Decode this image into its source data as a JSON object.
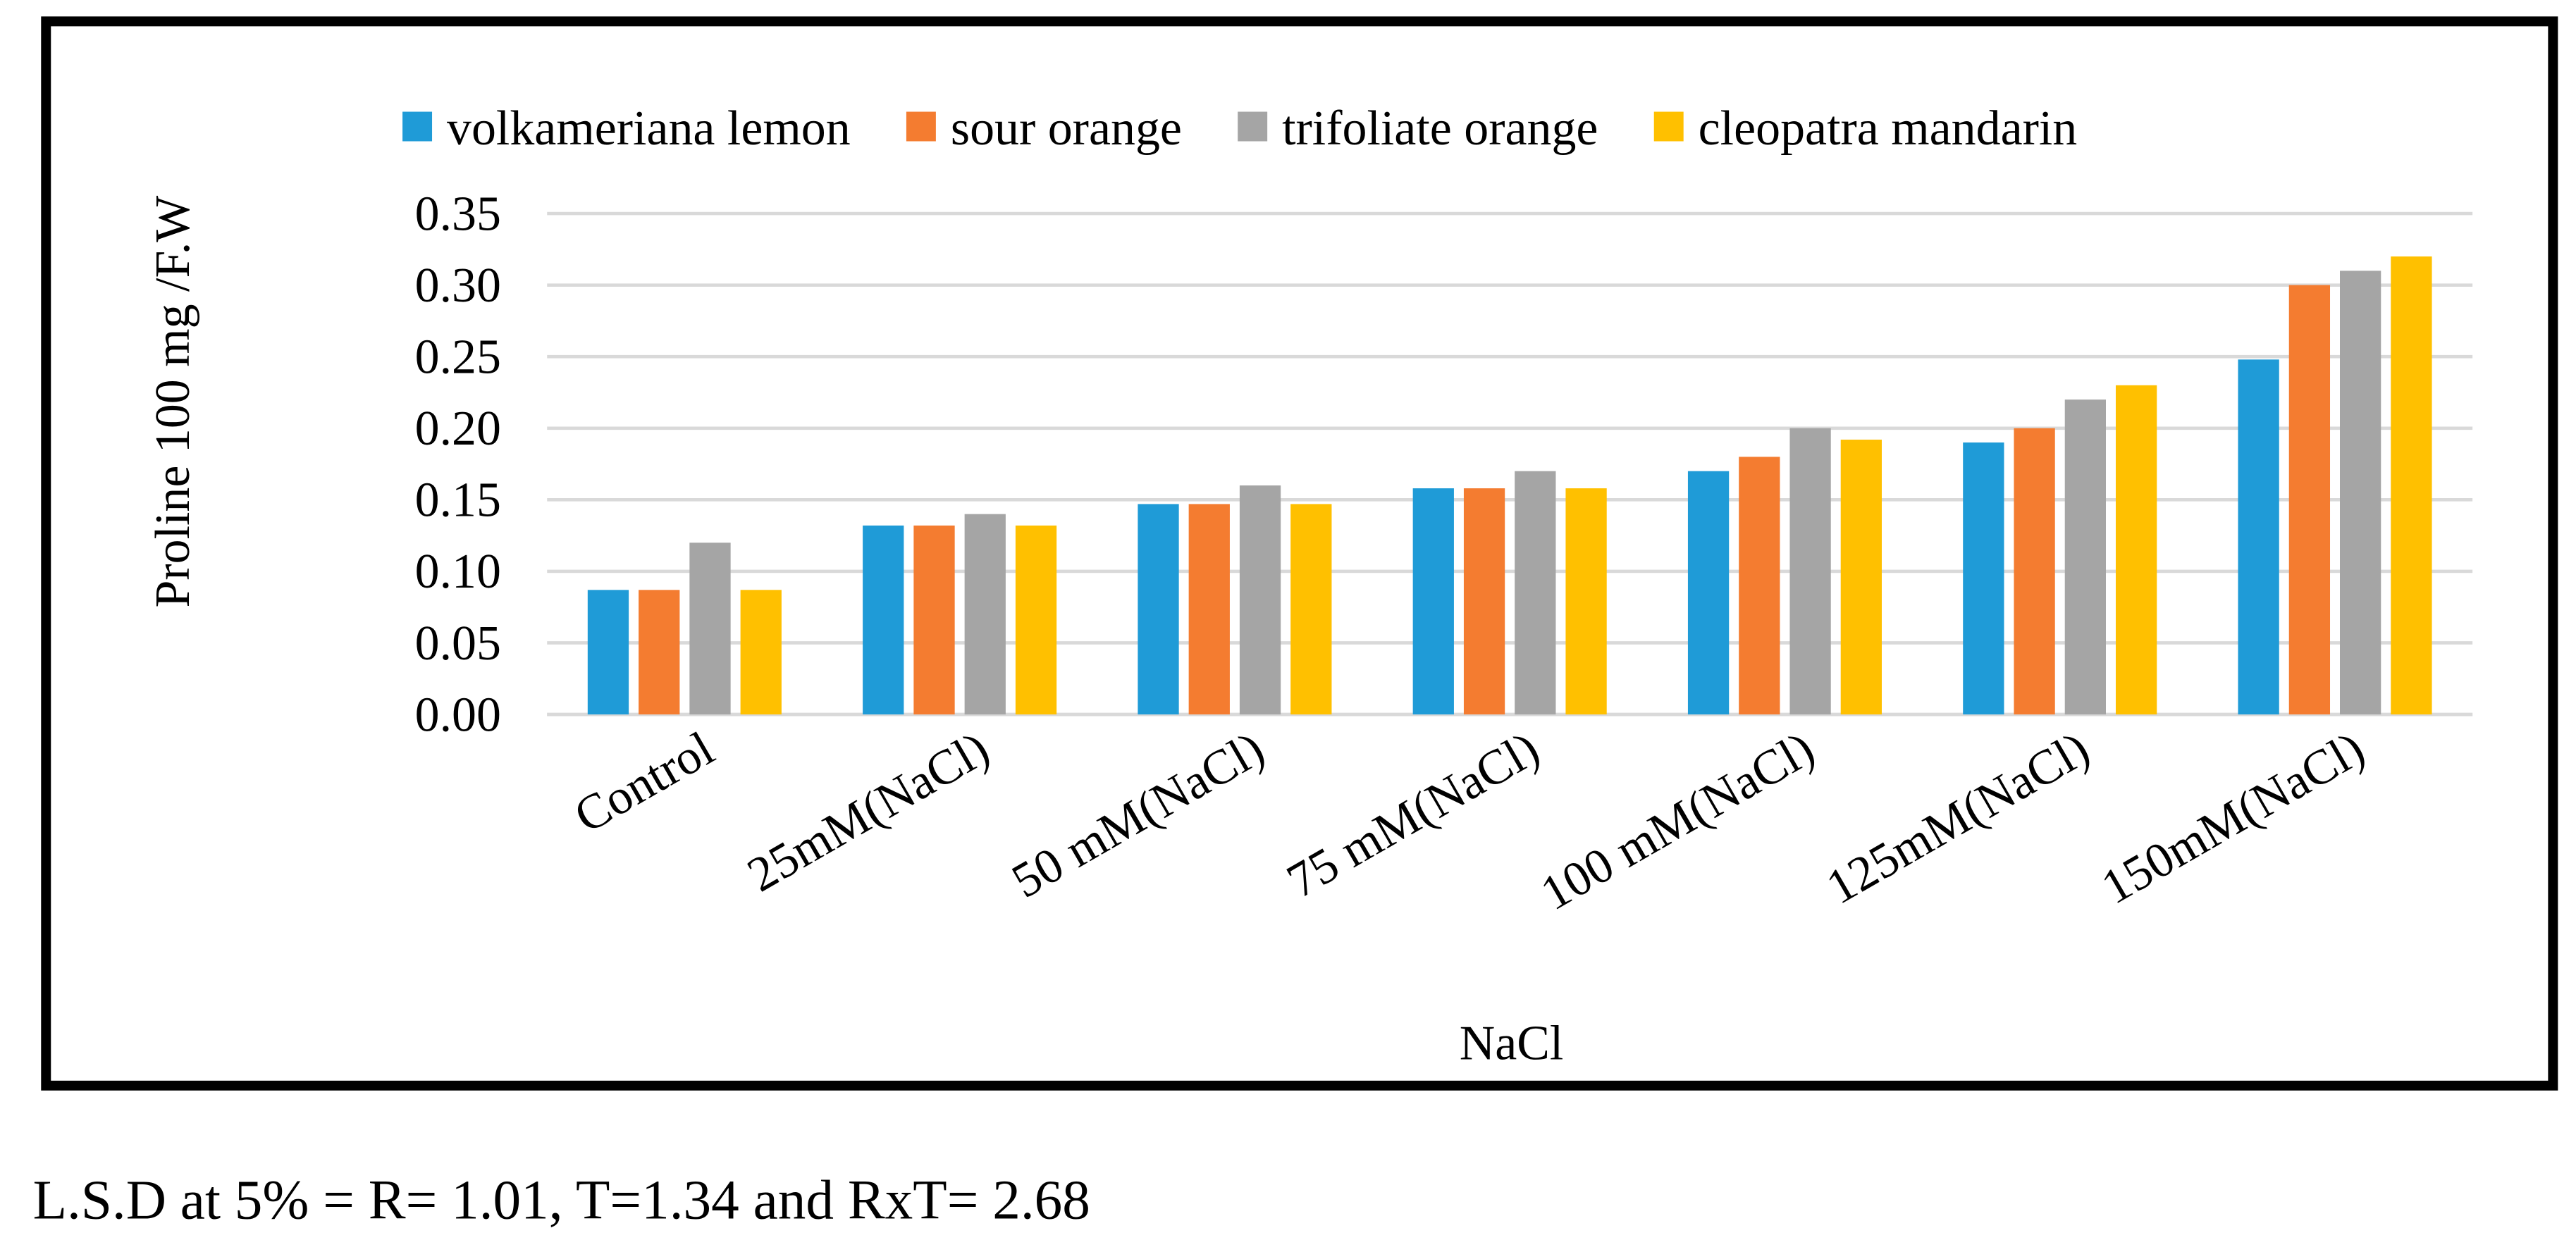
{
  "chart_data": {
    "type": "bar",
    "y_label": "Proline 100 mg /F.W",
    "x_label": "NaCl",
    "categories": [
      "Control",
      "25mM(NaCl)",
      "50 mM(NaCl)",
      "75 mM(NaCl)",
      "100 mM(NaCl)",
      "125mM(NaCl)",
      "150mM(NaCl)"
    ],
    "series": [
      {
        "name": "volkameriana lemon",
        "color": "#1f9bd7",
        "values": [
          0.087,
          0.132,
          0.147,
          0.158,
          0.17,
          0.19,
          0.248
        ]
      },
      {
        "name": "sour orange",
        "color": "#f47c30",
        "values": [
          0.087,
          0.132,
          0.147,
          0.158,
          0.18,
          0.2,
          0.3
        ]
      },
      {
        "name": "trifoliate orange",
        "color": "#a5a5a5",
        "values": [
          0.12,
          0.14,
          0.16,
          0.17,
          0.2,
          0.22,
          0.31
        ]
      },
      {
        "name": "cleopatra mandarin",
        "color": "#ffc000",
        "values": [
          0.087,
          0.132,
          0.147,
          0.158,
          0.192,
          0.23,
          0.32
        ]
      }
    ],
    "ylim": [
      0,
      0.35
    ],
    "yticks": [
      {
        "value": 0,
        "label": "0.00"
      },
      0.05,
      {
        "value": 0.1,
        "label": "0.10"
      },
      0.15,
      {
        "value": 0.2,
        "label": "0.20"
      },
      0.25,
      {
        "value": 0.3,
        "label": "0.30"
      },
      0.35
    ],
    "grid": true,
    "legend": "top"
  },
  "note": "L.S.D at 5% = R= 1.01, T=1.34 and RxT= 2.68"
}
